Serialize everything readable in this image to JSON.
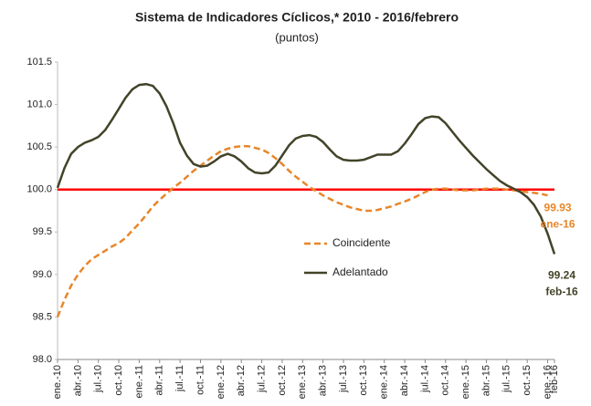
{
  "chart_data": {
    "type": "line",
    "title": "Sistema de Indicadores Cíclicos,* 2010 - 2016/febrero",
    "subtitle": "(puntos)",
    "categories": [
      "ene.-10",
      null,
      null,
      "abr.-10",
      null,
      null,
      "jul.-10",
      null,
      null,
      "oct.-10",
      null,
      null,
      "ene.-11",
      null,
      null,
      "abr.-11",
      null,
      null,
      "jul.-11",
      null,
      null,
      "oct.-11",
      null,
      null,
      "ene.-12",
      null,
      null,
      "abr.-12",
      null,
      null,
      "jul.-12",
      null,
      null,
      "oct.-12",
      null,
      null,
      "ene.-13",
      null,
      null,
      "abr.-13",
      null,
      null,
      "jul.-13",
      null,
      null,
      "oct.-13",
      null,
      null,
      "ene.-14",
      null,
      null,
      "abr.-14",
      null,
      null,
      "jul.-14",
      null,
      null,
      "oct.-14",
      null,
      null,
      "ene.-15",
      null,
      null,
      "abr.-15",
      null,
      null,
      "jul.-15",
      null,
      null,
      "oct.-15",
      null,
      null,
      "ene.-16",
      "feb-16"
    ],
    "series": [
      {
        "name": "Coincidente",
        "color": "#e8862a",
        "dashed": true,
        "values": [
          98.5,
          98.7,
          98.87,
          99.0,
          99.1,
          99.18,
          99.23,
          99.28,
          99.33,
          99.37,
          99.43,
          99.52,
          99.6,
          99.7,
          99.8,
          99.88,
          99.95,
          100.02,
          100.08,
          100.15,
          100.22,
          100.28,
          100.34,
          100.4,
          100.45,
          100.48,
          100.5,
          100.51,
          100.51,
          100.49,
          100.47,
          100.43,
          100.37,
          100.3,
          100.22,
          100.15,
          100.09,
          100.03,
          99.98,
          99.93,
          99.89,
          99.85,
          99.82,
          99.79,
          99.77,
          99.75,
          99.75,
          99.76,
          99.78,
          99.8,
          99.83,
          99.86,
          99.89,
          99.93,
          99.97,
          100.0,
          100.01,
          100.01,
          100.0,
          99.99,
          99.99,
          99.99,
          100.0,
          100.01,
          100.01,
          100.01,
          100.0,
          99.99,
          99.98,
          99.97,
          99.96,
          99.95,
          99.93,
          null
        ]
      },
      {
        "name": "Adelantado",
        "color": "#434329",
        "dashed": false,
        "values": [
          100.02,
          100.25,
          100.42,
          100.5,
          100.55,
          100.58,
          100.62,
          100.7,
          100.82,
          100.95,
          101.08,
          101.18,
          101.23,
          101.24,
          101.22,
          101.13,
          100.98,
          100.78,
          100.55,
          100.4,
          100.3,
          100.27,
          100.28,
          100.33,
          100.39,
          100.42,
          100.39,
          100.33,
          100.25,
          100.2,
          100.19,
          100.2,
          100.28,
          100.4,
          100.52,
          100.6,
          100.63,
          100.64,
          100.62,
          100.56,
          100.47,
          100.39,
          100.35,
          100.34,
          100.34,
          100.35,
          100.38,
          100.41,
          100.41,
          100.41,
          100.45,
          100.54,
          100.65,
          100.77,
          100.84,
          100.86,
          100.85,
          100.78,
          100.68,
          100.58,
          100.49,
          100.4,
          100.32,
          100.24,
          100.17,
          100.1,
          100.05,
          100.01,
          99.97,
          99.91,
          99.82,
          99.68,
          99.48,
          99.24
        ]
      }
    ],
    "annotations": [
      "ene-16",
      "feb-16"
    ],
    "hline": 100,
    "hline_color": "#ff0000",
    "ylim": [
      98.0,
      101.5
    ],
    "yticks": [
      {
        "value": 98.0,
        "label": "98.0"
      },
      98.5,
      {
        "value": 99.0,
        "label": "99.0"
      },
      99.5,
      {
        "value": 100.0,
        "label": "100.0"
      },
      100.5,
      {
        "value": 101.0,
        "label": "101.0"
      },
      101.5
    ],
    "grid": false
  }
}
